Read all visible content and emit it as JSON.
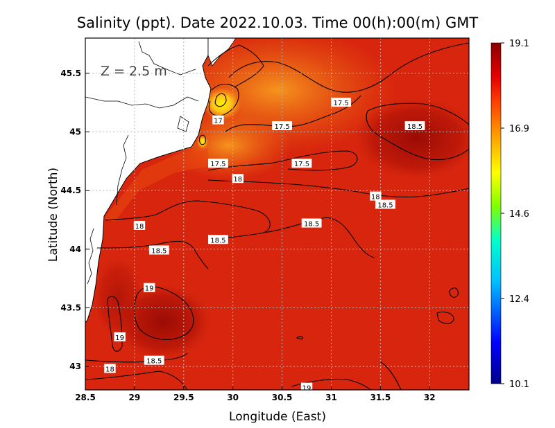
{
  "chart_data": {
    "type": "heatmap",
    "title": "Salinity (ppt). Date 2022.10.03. Time 00(h):00(m) GMT",
    "xlabel": "Longitude (East)",
    "ylabel": "Latitude (North)",
    "xlim": [
      28.5,
      32.4
    ],
    "ylim": [
      42.8,
      45.8
    ],
    "x_ticks": [
      "28.5",
      "29",
      "29.5",
      "30",
      "30.5",
      "31",
      "31.5",
      "32"
    ],
    "y_ticks": [
      "43",
      "43.5",
      "44",
      "44.5",
      "45",
      "45.5"
    ],
    "grid": true,
    "annotation": "Z = 2.5 m",
    "colorbar": {
      "min": 10.1,
      "max": 19.1,
      "tick_labels": [
        "19.1",
        "16.9",
        "14.6",
        "12.4",
        "10.1"
      ],
      "colormap": [
        "#00008b",
        "#0000ff",
        "#00bfff",
        "#00ffcc",
        "#7fff00",
        "#ffff00",
        "#ffa500",
        "#ff4500",
        "#e60000",
        "#8b0000"
      ]
    },
    "contour_labels": [
      {
        "text": "17.5",
        "lon": 31.1,
        "lat": 45.25
      },
      {
        "text": "17.5",
        "lon": 30.5,
        "lat": 45.05
      },
      {
        "text": "17.5",
        "lon": 29.85,
        "lat": 44.73
      },
      {
        "text": "17.5",
        "lon": 30.7,
        "lat": 44.73
      },
      {
        "text": "17",
        "lon": 29.85,
        "lat": 45.1
      },
      {
        "text": "18",
        "lon": 30.05,
        "lat": 44.6
      },
      {
        "text": "18",
        "lon": 31.45,
        "lat": 44.45
      },
      {
        "text": "18",
        "lon": 29.05,
        "lat": 44.2
      },
      {
        "text": "18",
        "lon": 28.75,
        "lat": 42.98
      },
      {
        "text": "18.5",
        "lon": 31.85,
        "lat": 45.05
      },
      {
        "text": "18.5",
        "lon": 31.55,
        "lat": 44.38
      },
      {
        "text": "18.5",
        "lon": 30.8,
        "lat": 44.22
      },
      {
        "text": "18.5",
        "lon": 29.85,
        "lat": 44.08
      },
      {
        "text": "18.5",
        "lon": 29.25,
        "lat": 43.99
      },
      {
        "text": "18.5",
        "lon": 29.2,
        "lat": 43.05
      },
      {
        "text": "19",
        "lon": 29.15,
        "lat": 43.67
      },
      {
        "text": "19",
        "lon": 28.85,
        "lat": 43.25
      },
      {
        "text": "19",
        "lon": 30.75,
        "lat": 42.82
      }
    ]
  }
}
